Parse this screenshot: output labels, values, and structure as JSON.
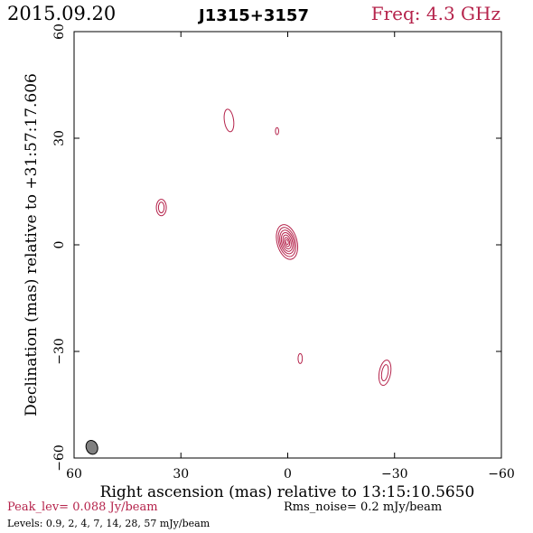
{
  "header": {
    "date": "2015.09.20",
    "source": "J1315+3157",
    "frequency": "Freq: 4.3 GHz"
  },
  "footer": {
    "peak_level": "Peak_lev=  0.088 Jy/beam",
    "rms_noise": "Rms_noise=   0.2 mJy/beam",
    "levels": "Levels: 0.9,    2,    4,    7,   14,   28,   57 mJy/beam"
  },
  "colors": {
    "contour": "#b5234b",
    "beam": "#808080",
    "frame": "#000000"
  },
  "chart_data": {
    "type": "contour",
    "xlabel": "Right ascension (mas) relative to 13:15:10.5650",
    "ylabel": "Declination (mas) relative to +31:57:17.606",
    "xlim": [
      60,
      -60
    ],
    "ylim": [
      -60,
      60
    ],
    "xticks": [
      60,
      30,
      0,
      -30,
      -60
    ],
    "yticks": [
      -60,
      -30,
      0,
      30,
      60
    ],
    "xtick_labels": [
      "60",
      "30",
      "0",
      "−30",
      "−60"
    ],
    "ytick_labels": [
      "−60",
      "−30",
      "0",
      "30",
      "60"
    ],
    "contour_levels_mJy_per_beam": [
      0.9,
      2,
      4,
      7,
      14,
      28,
      57
    ],
    "components": [
      {
        "x": 0.2,
        "y": 0.8,
        "rx_levels": [
          2.8,
          2.3,
          1.9,
          1.5,
          1.1,
          0.7,
          0.35
        ],
        "ry_levels": [
          5.0,
          4.2,
          3.4,
          2.7,
          2.0,
          1.3,
          0.7
        ],
        "angle": -15
      },
      {
        "x": 16.5,
        "y": 35,
        "rx_levels": [
          1.3
        ],
        "ry_levels": [
          3.2
        ],
        "angle": -8
      },
      {
        "x": 3.0,
        "y": 32,
        "rx_levels": [
          0.45
        ],
        "ry_levels": [
          1.0
        ],
        "angle": 0
      },
      {
        "x": 35.5,
        "y": 10.5,
        "rx_levels": [
          1.4,
          0.8
        ],
        "ry_levels": [
          2.3,
          1.5
        ],
        "angle": 0
      },
      {
        "x": -3.5,
        "y": -32,
        "rx_levels": [
          0.6
        ],
        "ry_levels": [
          1.4
        ],
        "angle": 0
      },
      {
        "x": -27.3,
        "y": -36,
        "rx_levels": [
          1.6,
          0.9
        ],
        "ry_levels": [
          3.6,
          2.3
        ],
        "angle": 10
      }
    ],
    "beam": {
      "x": 55,
      "y": -57,
      "rx": 1.6,
      "ry": 2.0,
      "angle": -20
    }
  }
}
